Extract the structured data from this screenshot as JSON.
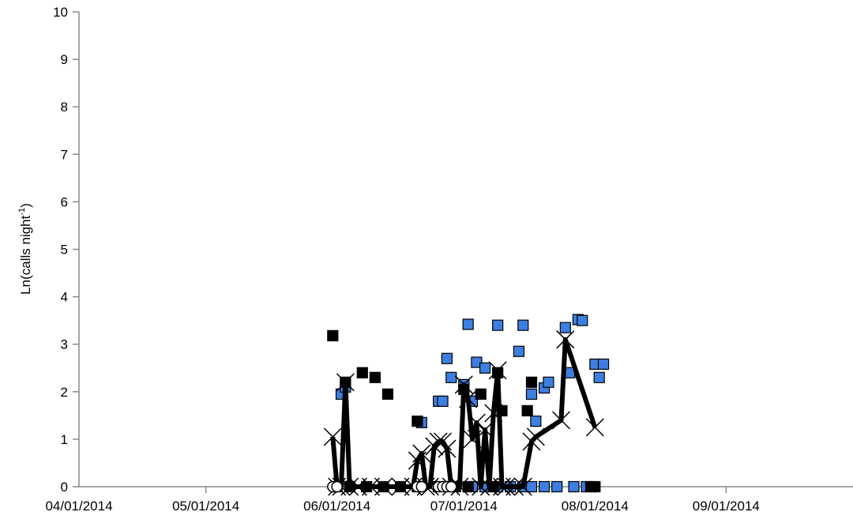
{
  "chart_data": {
    "type": "scatter",
    "ylabel_text": "Ln(calls night",
    "ylabel_sup": "-1",
    "ylabel_close": ")",
    "ylim": [
      0,
      10
    ],
    "yticks": [
      "0",
      "1",
      "2",
      "3",
      "4",
      "5",
      "6",
      "7",
      "8",
      "9",
      "10"
    ],
    "xlim": [
      "2014-04-01",
      "2014-10-01"
    ],
    "xticks": [
      {
        "date": "2014-04-01",
        "label": "04/01/2014"
      },
      {
        "date": "2014-05-01",
        "label": "05/01/2014"
      },
      {
        "date": "2014-06-01",
        "label": "06/01/2014"
      },
      {
        "date": "2014-07-01",
        "label": "07/01/2014"
      },
      {
        "date": "2014-08-01",
        "label": "08/01/2014"
      },
      {
        "date": "2014-09-01",
        "label": "09/01/2014"
      }
    ],
    "grid": false,
    "legend": "none",
    "series": [
      {
        "marker": "square",
        "color": "#3d7fe0",
        "points": [
          [
            "2014-06-02",
            1.95
          ],
          [
            "2014-06-03",
            2.1
          ],
          [
            "2014-06-21",
            1.35
          ],
          [
            "2014-06-25",
            1.8
          ],
          [
            "2014-06-26",
            1.8
          ],
          [
            "2014-06-27",
            2.7
          ],
          [
            "2014-06-28",
            2.3
          ],
          [
            "2014-07-01",
            2.15
          ],
          [
            "2014-07-02",
            3.42
          ],
          [
            "2014-07-03",
            1.8
          ],
          [
            "2014-07-04",
            2.62
          ],
          [
            "2014-07-06",
            2.5
          ],
          [
            "2014-07-09",
            3.4
          ],
          [
            "2014-07-14",
            2.85
          ],
          [
            "2014-07-15",
            3.4
          ],
          [
            "2014-07-17",
            1.95
          ],
          [
            "2014-07-18",
            1.38
          ],
          [
            "2014-07-20",
            2.08
          ],
          [
            "2014-07-21",
            2.2
          ],
          [
            "2014-07-25",
            3.35
          ],
          [
            "2014-07-26",
            2.4
          ],
          [
            "2014-07-28",
            3.52
          ],
          [
            "2014-07-29",
            3.5
          ],
          [
            "2014-08-01",
            2.58
          ],
          [
            "2014-08-02",
            2.3
          ],
          [
            "2014-08-03",
            2.58
          ],
          [
            "2014-07-03",
            0
          ],
          [
            "2014-07-06",
            0
          ],
          [
            "2014-07-09",
            0
          ],
          [
            "2014-07-12",
            0
          ],
          [
            "2014-07-15",
            0
          ],
          [
            "2014-07-17",
            0
          ],
          [
            "2014-07-20",
            0
          ],
          [
            "2014-07-23",
            0
          ],
          [
            "2014-07-27",
            0
          ],
          [
            "2014-07-30",
            0
          ]
        ]
      },
      {
        "marker": "square",
        "color": "#000000",
        "points": [
          [
            "2014-05-31",
            3.18
          ],
          [
            "2014-06-03",
            2.2
          ],
          [
            "2014-06-07",
            2.4
          ],
          [
            "2014-06-10",
            2.3
          ],
          [
            "2014-06-13",
            1.95
          ],
          [
            "2014-06-20",
            1.38
          ],
          [
            "2014-07-01",
            2.05
          ],
          [
            "2014-07-05",
            1.95
          ],
          [
            "2014-07-09",
            2.4
          ],
          [
            "2014-07-10",
            1.6
          ],
          [
            "2014-07-16",
            1.6
          ],
          [
            "2014-07-17",
            2.2
          ],
          [
            "2014-06-01",
            0
          ],
          [
            "2014-06-04",
            0
          ],
          [
            "2014-06-08",
            0
          ],
          [
            "2014-06-12",
            0
          ],
          [
            "2014-06-16",
            0
          ],
          [
            "2014-06-20",
            0
          ],
          [
            "2014-06-25",
            0
          ],
          [
            "2014-06-29",
            0
          ],
          [
            "2014-07-02",
            0
          ],
          [
            "2014-07-08",
            0
          ],
          [
            "2014-07-31",
            0
          ],
          [
            "2014-08-01",
            0
          ]
        ]
      },
      {
        "marker": "x-line",
        "color": "#000000",
        "points": [
          [
            "2014-05-31",
            1.05
          ],
          [
            "2014-06-01",
            0
          ],
          [
            "2014-06-02",
            0
          ],
          [
            "2014-06-03",
            2.2
          ],
          [
            "2014-06-04",
            0
          ],
          [
            "2014-06-06",
            0
          ],
          [
            "2014-06-09",
            0
          ],
          [
            "2014-06-12",
            0
          ],
          [
            "2014-06-16",
            0
          ],
          [
            "2014-06-19",
            0
          ],
          [
            "2014-06-20",
            0.55
          ],
          [
            "2014-06-21",
            0.7
          ],
          [
            "2014-06-22",
            0
          ],
          [
            "2014-06-23",
            0
          ],
          [
            "2014-06-24",
            0.85
          ],
          [
            "2014-06-25",
            0.95
          ],
          [
            "2014-06-26",
            0.95
          ],
          [
            "2014-06-27",
            0.8
          ],
          [
            "2014-06-28",
            0
          ],
          [
            "2014-06-30",
            0
          ],
          [
            "2014-07-01",
            2.15
          ],
          [
            "2014-07-02",
            1.85
          ],
          [
            "2014-07-03",
            1.0
          ],
          [
            "2014-07-04",
            1.35
          ],
          [
            "2014-07-05",
            0
          ],
          [
            "2014-07-06",
            1.2
          ],
          [
            "2014-07-07",
            0
          ],
          [
            "2014-07-08",
            1.55
          ],
          [
            "2014-07-09",
            2.45
          ],
          [
            "2014-07-10",
            0
          ],
          [
            "2014-07-11",
            0
          ],
          [
            "2014-07-13",
            0
          ],
          [
            "2014-07-15",
            0
          ],
          [
            "2014-07-17",
            0.95
          ],
          [
            "2014-07-18",
            1.05
          ],
          [
            "2014-07-24",
            1.4
          ],
          [
            "2014-07-25",
            3.1
          ],
          [
            "2014-08-01",
            1.25
          ]
        ]
      },
      {
        "marker": "circle",
        "color": "#ffffff",
        "points": [
          [
            "2014-05-31",
            0
          ],
          [
            "2014-06-01",
            0
          ],
          [
            "2014-06-20",
            0
          ],
          [
            "2014-06-21",
            0
          ],
          [
            "2014-06-25",
            0
          ],
          [
            "2014-06-26",
            0
          ],
          [
            "2014-06-27",
            0
          ],
          [
            "2014-06-28",
            0
          ]
        ]
      }
    ]
  }
}
